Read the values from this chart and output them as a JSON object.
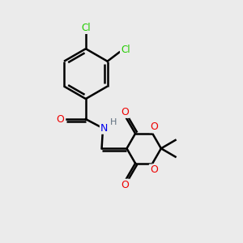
{
  "background_color": "#ebebeb",
  "bond_color": "#000000",
  "bond_width": 1.8,
  "atom_colors": {
    "C": "#000000",
    "H": "#607080",
    "N": "#0000EE",
    "O": "#EE0000",
    "Cl": "#22CC00"
  },
  "figsize": [
    3.0,
    3.0
  ],
  "dpi": 100
}
